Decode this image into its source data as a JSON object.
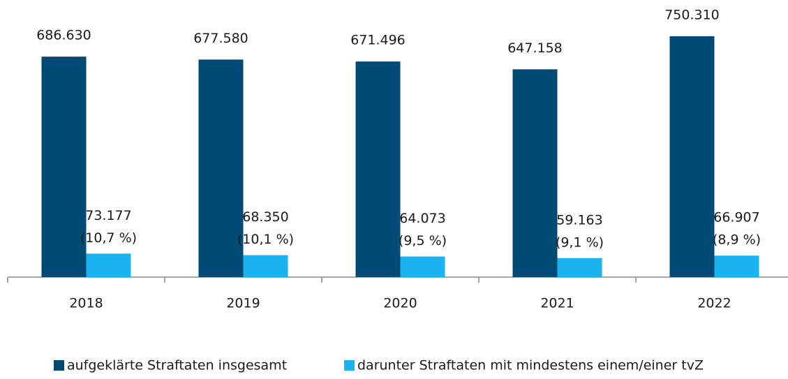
{
  "chart_data": {
    "type": "bar",
    "categories": [
      "2018",
      "2019",
      "2020",
      "2021",
      "2022"
    ],
    "series": [
      {
        "name": "aufgeklärte Straftaten insgesamt",
        "color": "#004b76",
        "values": [
          686630,
          677580,
          671496,
          647158,
          750310
        ],
        "value_labels": [
          "686.630",
          "677.580",
          "671.496",
          "647.158",
          "750.310"
        ]
      },
      {
        "name": "darunter Straftaten mit mindestens einem/einer tvZ",
        "color": "#1ab2ef",
        "values": [
          73177,
          68350,
          64073,
          59163,
          66907
        ],
        "value_labels": [
          "73.177",
          "68.350",
          "64.073",
          "59.163",
          "66.907"
        ],
        "share_labels": [
          "(10,7 %)",
          "(10,1 %)",
          "(9,5 %)",
          "(9,1 %)",
          "(8,9 %)"
        ]
      }
    ],
    "ylim": [
      0,
      800000
    ]
  }
}
